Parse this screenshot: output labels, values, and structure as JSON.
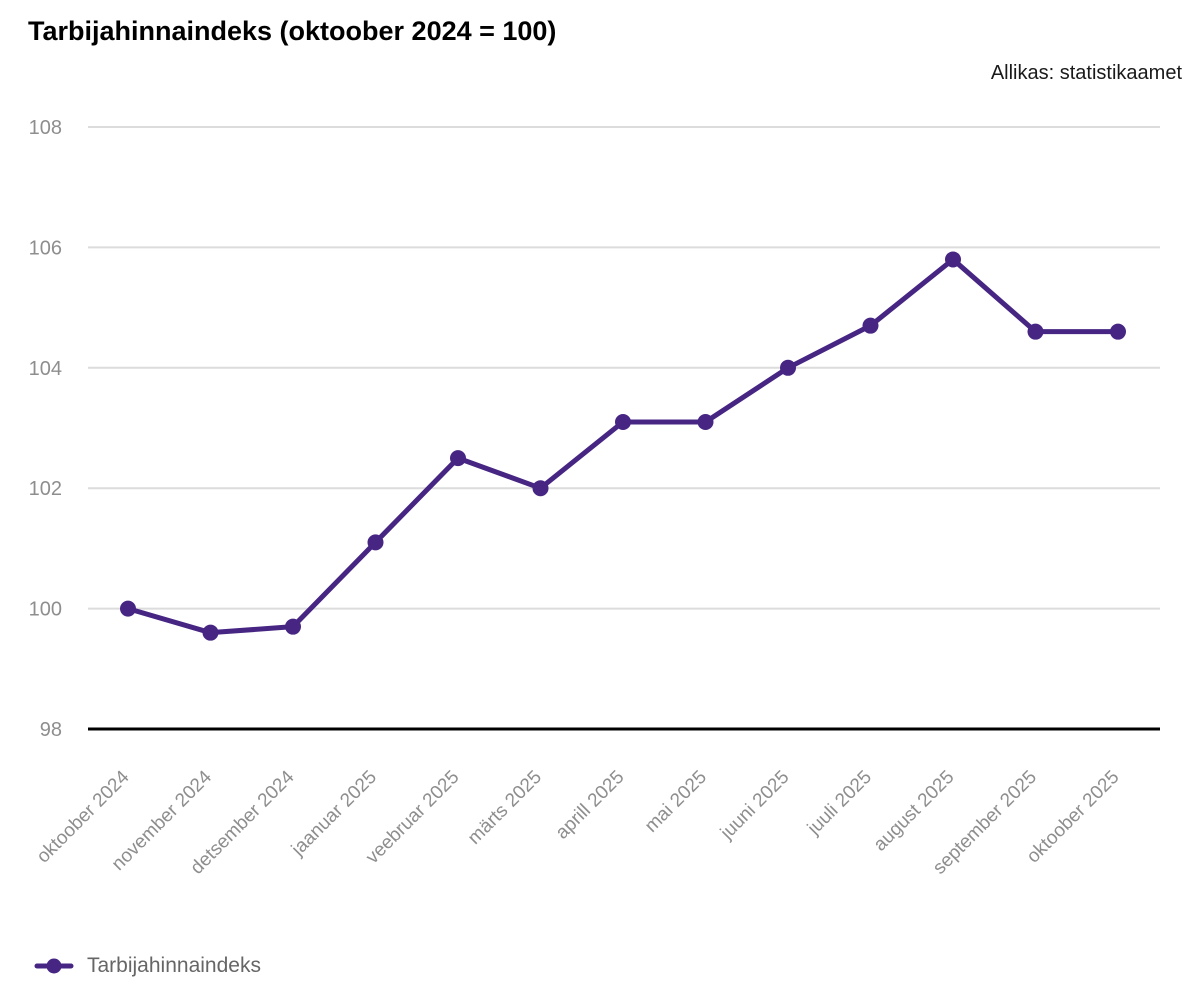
{
  "colors": {
    "line": "#462583",
    "grid": "#dcdcdc",
    "axis_line": "#000000",
    "tick_label": "#8e8e8e",
    "legend_text": "#666666",
    "title_text": "#000000",
    "source_text": "#1a1a1a",
    "background": "#ffffff"
  },
  "chart_data": {
    "type": "line",
    "title": "Tarbijahinnaindeks (oktoober 2024 = 100)",
    "source": "Allikas: statistikaamet",
    "categories": [
      "oktoober 2024",
      "november 2024",
      "detsember 2024",
      "jaanuar 2025",
      "veebruar 2025",
      "märts 2025",
      "aprill 2025",
      "mai 2025",
      "juuni 2025",
      "juuli 2025",
      "august 2025",
      "september 2025",
      "oktoober 2025"
    ],
    "series": [
      {
        "name": "Tarbijahinnaindeks",
        "values": [
          100.0,
          99.6,
          99.7,
          101.1,
          102.5,
          102.0,
          103.1,
          103.1,
          104.0,
          104.7,
          105.8,
          104.6,
          104.6
        ]
      }
    ],
    "xlabel": "",
    "ylabel": "",
    "ylim": [
      98,
      108
    ],
    "yticks": [
      98,
      100,
      102,
      104,
      106,
      108
    ],
    "grid": true,
    "marker": "circle",
    "legend_position": "bottom-left"
  }
}
